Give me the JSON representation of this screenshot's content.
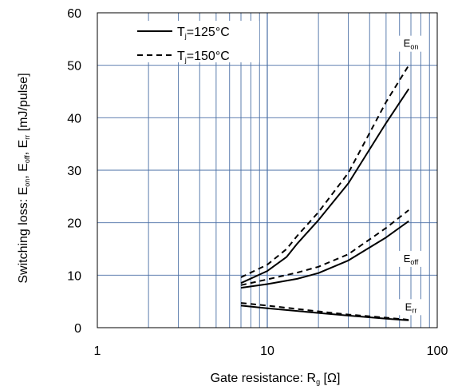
{
  "chart_data": {
    "type": "line",
    "x_scale": "log",
    "y_scale": "linear",
    "xlim": [
      1,
      100
    ],
    "ylim": [
      0,
      60
    ],
    "x_ticks": [
      "1",
      "10",
      "100"
    ],
    "y_ticks": [
      "0",
      "10",
      "20",
      "30",
      "40",
      "50",
      "60"
    ],
    "grid": true,
    "grid_color": "#4a6fa5",
    "xlabel": {
      "main": "Gate resistance: R",
      "sub": "g",
      "tail": " [Ω]"
    },
    "ylabel": {
      "p1": "Switching loss: E",
      "s1": "on",
      "p2": ", E",
      "s2": "off",
      "p3": ", E",
      "s3": "rr",
      "p4": " [mJ/pulse]"
    },
    "legend": [
      {
        "pre": "T",
        "sub": "j",
        "post": "=125°C",
        "style": "solid"
      },
      {
        "pre": "T",
        "sub": "j",
        "post": "=150°C",
        "style": "dashed"
      }
    ],
    "legend_position": "top-left",
    "curve_labels": [
      {
        "main": "E",
        "sub": "on",
        "x": 70,
        "y": 53.5
      },
      {
        "main": "E",
        "sub": "off",
        "x": 70,
        "y": 12.5
      },
      {
        "main": "E",
        "sub": "rr",
        "x": 70,
        "y": 3.3
      }
    ],
    "series": [
      {
        "curve": "Eon",
        "style": "solid",
        "x": [
          7,
          10,
          13,
          15,
          20,
          30,
          50,
          68
        ],
        "y": [
          8.5,
          10.8,
          13.5,
          16,
          20.5,
          27.5,
          39,
          45.5
        ]
      },
      {
        "curve": "Eon",
        "style": "dashed",
        "x": [
          7,
          10,
          13,
          15,
          20,
          30,
          50,
          68
        ],
        "y": [
          9.6,
          12,
          15,
          17.5,
          22,
          29.5,
          43,
          50
        ]
      },
      {
        "curve": "Eoff",
        "style": "solid",
        "x": [
          7,
          10,
          15,
          20,
          30,
          50,
          68
        ],
        "y": [
          7.6,
          8.3,
          9.3,
          10.4,
          12.8,
          17.2,
          20.3
        ]
      },
      {
        "curve": "Eoff",
        "style": "dashed",
        "x": [
          7,
          10,
          15,
          20,
          30,
          50,
          68
        ],
        "y": [
          8.1,
          9.2,
          10.5,
          11.6,
          14,
          19,
          22.4
        ]
      },
      {
        "curve": "Err",
        "style": "solid",
        "x": [
          7,
          10,
          20,
          30,
          50,
          68
        ],
        "y": [
          4.2,
          3.7,
          2.8,
          2.3,
          1.7,
          1.4
        ]
      },
      {
        "curve": "Err",
        "style": "dashed",
        "x": [
          7,
          10,
          20,
          30,
          50,
          68
        ],
        "y": [
          4.7,
          4.2,
          3.1,
          2.5,
          1.9,
          1.5
        ]
      }
    ]
  }
}
